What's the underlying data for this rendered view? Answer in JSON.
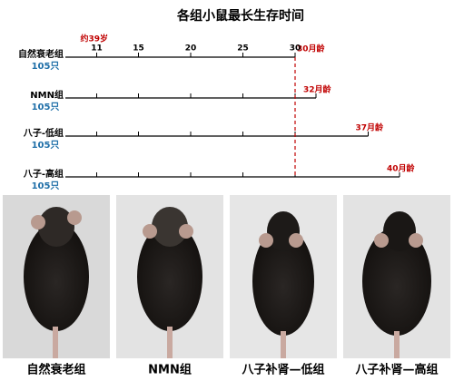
{
  "chart_data": {
    "type": "timeline",
    "title": "各组小鼠最长生存时间",
    "categories": [
      "自然衰老组",
      "NMN组",
      "八子-低组",
      "八子-高组"
    ],
    "group_sizes": [
      "105只",
      "105只",
      "105只",
      "105只"
    ],
    "values": [
      30,
      32,
      37,
      40
    ],
    "value_labels": [
      "30月龄",
      "32月龄",
      "37月龄",
      "40月龄"
    ],
    "annotation": "约39岁",
    "xlim": [
      8,
      42
    ],
    "xticks": [
      11,
      15,
      20,
      25,
      30
    ],
    "reference_x": 30,
    "reference_color": "#c00000",
    "label_color": "#c00000",
    "size_color": "#1f6fa8",
    "line_color": "#000000"
  },
  "photos": {
    "captions": [
      "自然衰老组",
      "NMN组",
      "八子补肾—低组",
      "八子补肾—高组"
    ]
  }
}
